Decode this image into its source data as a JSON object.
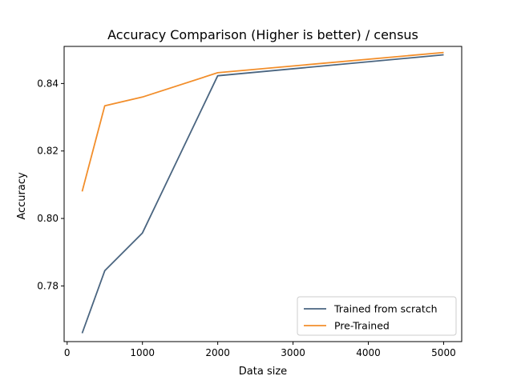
{
  "chart_data": {
    "type": "line",
    "title": "Accuracy Comparison (Higher is better) / census",
    "xlabel": "Data size",
    "ylabel": "Accuracy",
    "xlim": [
      -40,
      5240
    ],
    "ylim": [
      0.7635,
      0.851
    ],
    "xticks": [
      0,
      1000,
      2000,
      3000,
      4000,
      5000
    ],
    "yticks": [
      0.78,
      0.8,
      0.82,
      0.84
    ],
    "ytick_labels": [
      "0.78",
      "0.80",
      "0.82",
      "0.84"
    ],
    "grid": false,
    "legend_position": "lower right",
    "series": [
      {
        "name": "Trained from scratch",
        "color": "#4a6580",
        "x": [
          200,
          500,
          1000,
          2000,
          5000
        ],
        "y": [
          0.766,
          0.7845,
          0.7957,
          0.8423,
          0.8485
        ]
      },
      {
        "name": "Pre-Trained",
        "color": "#f28e2b",
        "x": [
          200,
          500,
          1000,
          2000,
          5000
        ],
        "y": [
          0.808,
          0.8334,
          0.836,
          0.8432,
          0.8492
        ]
      }
    ]
  }
}
